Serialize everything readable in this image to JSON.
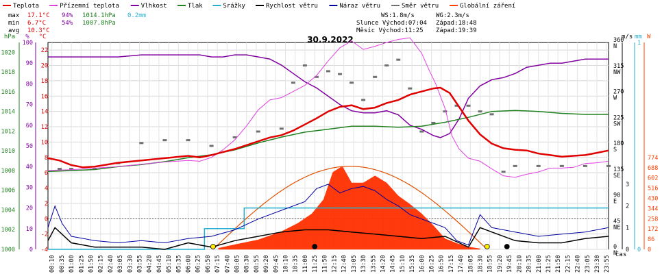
{
  "legend": [
    {
      "label": "Teplota",
      "color": "#e00000"
    },
    {
      "label": "Přízemní teplota",
      "color": "#e040e0"
    },
    {
      "label": "Vlhkost",
      "color": "#8000a0"
    },
    {
      "label": "Tlak",
      "color": "#208020"
    },
    {
      "label": "Srážky",
      "color": "#20b0d0"
    },
    {
      "label": "Rychlost větru",
      "color": "#000000"
    },
    {
      "label": "Náraz větru",
      "color": "#0000a0"
    },
    {
      "label": "Směr větru",
      "color": "#707070"
    },
    {
      "label": "Globální záření",
      "color": "#ff4000"
    }
  ],
  "stats": {
    "max_label": "max",
    "max_temp": "17.1°C",
    "max_hum": "94%",
    "max_press": "1014.1hPa",
    "max_rain": "0.2mm",
    "min_label": "min",
    "min_temp": "6.7°C",
    "min_hum": "54%",
    "min_press": "1007.8hPa",
    "avg_label": "avg",
    "avg_temp": "10.3°C",
    "ws": "WS:1.8m/s",
    "wg": "WG:2.3m/s",
    "sun": "Slunce Východ:07:04",
    "sun_set": "Západ:18:48",
    "moon": "Měsíc Východ:11:25",
    "moon_set": "Západ:19:39"
  },
  "chart_data": {
    "type": "line",
    "title": "30.9.2022",
    "xlabel": "čas",
    "x_ticks": [
      "00:10",
      "00:35",
      "01:00",
      "01:25",
      "01:50",
      "02:15",
      "02:40",
      "03:05",
      "03:30",
      "03:55",
      "04:20",
      "04:45",
      "05:10",
      "05:35",
      "06:00",
      "06:25",
      "06:50",
      "07:15",
      "07:40",
      "08:05",
      "08:30",
      "08:55",
      "09:20",
      "09:45",
      "10:10",
      "10:35",
      "11:00",
      "11:25",
      "11:50",
      "12:15",
      "12:40",
      "13:05",
      "13:30",
      "13:55",
      "14:20",
      "14:45",
      "15:10",
      "15:35",
      "16:00",
      "16:25",
      "16:50",
      "17:15",
      "17:40",
      "18:05",
      "18:30",
      "18:55",
      "19:20",
      "19:45",
      "20:10",
      "20:35",
      "21:00",
      "21:25",
      "21:50",
      "22:15",
      "22:40",
      "23:05",
      "23:30",
      "23:55"
    ],
    "left_axes": [
      {
        "unit": "hPa",
        "color": "#208020",
        "ticks": [
          "1000",
          "1002",
          "1004",
          "1006",
          "1008",
          "1010",
          "1012",
          "1014",
          "1016",
          "1018",
          "1020"
        ]
      },
      {
        "unit": "%",
        "color": "#8000a0",
        "ticks": [
          "0",
          "10",
          "20",
          "30",
          "40",
          "50",
          "60",
          "70",
          "80",
          "90",
          "100"
        ]
      },
      {
        "unit": "°C",
        "color": "#e00000",
        "ticks": [
          "-4",
          "-2",
          "0",
          "2",
          "4",
          "6",
          "8",
          "10",
          "12",
          "14",
          "16",
          "18",
          "20",
          "22"
        ]
      }
    ],
    "right_axes": [
      {
        "unit": "m/s",
        "color": "#000000",
        "ticks": [
          "0",
          "1",
          "2",
          "3"
        ]
      },
      {
        "unit": "mm",
        "color": "#20b0d0",
        "ticks": [
          "0",
          "1"
        ]
      },
      {
        "unit": "W",
        "color": "#ff4000",
        "ticks": [
          "0",
          "86",
          "172",
          "258",
          "344",
          "430",
          "516",
          "602",
          "688",
          "774"
        ]
      },
      {
        "unit": "°",
        "color": "#000000",
        "ticks": [
          "0",
          "45",
          "90",
          "135",
          "180",
          "225",
          "270",
          "315",
          "360"
        ],
        "dir": [
          "N",
          "NE",
          "E",
          "SE",
          "S",
          "SW",
          "W",
          "NW",
          "N"
        ]
      }
    ],
    "ylim_temp": [
      -4,
      23
    ],
    "ylim_hum": [
      0,
      100
    ],
    "ylim_press": [
      1000,
      1021
    ],
    "series": [
      {
        "name": "Teplota",
        "unit": "°C",
        "x_hours": [
          0,
          0.5,
          1,
          1.5,
          2,
          3,
          4,
          5,
          6,
          6.5,
          7,
          7.5,
          8,
          8.5,
          9,
          9.5,
          10,
          10.5,
          11,
          11.5,
          12,
          12.5,
          13,
          13.5,
          14,
          14.5,
          15,
          15.5,
          16,
          16.5,
          16.8,
          17.2,
          17.6,
          18,
          18.5,
          19,
          19.5,
          20,
          20.5,
          21,
          21.5,
          22,
          22.5,
          23,
          23.5,
          24
        ],
        "values": [
          7.9,
          7.6,
          7.0,
          6.7,
          6.8,
          7.3,
          7.6,
          7.9,
          8.2,
          8.0,
          8.3,
          8.7,
          9.1,
          9.6,
          10.1,
          10.6,
          10.9,
          11.5,
          12.3,
          13.1,
          14.0,
          14.6,
          14.8,
          14.3,
          14.5,
          15.1,
          15.5,
          16.2,
          16.6,
          17.0,
          17.1,
          16.4,
          14.6,
          12.8,
          11.0,
          9.8,
          9.2,
          9.0,
          8.9,
          8.5,
          8.3,
          8.1,
          8.2,
          8.3,
          8.6,
          8.9
        ]
      },
      {
        "name": "Přízemní teplota",
        "unit": "°C",
        "x_hours": [
          0,
          1,
          2,
          3,
          4,
          5,
          6,
          6.5,
          7,
          7.5,
          8,
          8.5,
          9,
          9.5,
          10,
          10.5,
          11,
          11.5,
          12,
          12.5,
          13,
          13.5,
          14,
          14.5,
          15,
          15.5,
          16,
          16.3,
          16.6,
          17,
          17.3,
          17.6,
          18,
          18.5,
          19,
          19.5,
          20,
          20.5,
          21,
          21.5,
          22,
          22.5,
          23,
          23.5,
          24
        ],
        "values": [
          6.3,
          6.4,
          6.6,
          6.8,
          7.1,
          7.4,
          7.6,
          7.5,
          8.0,
          9.0,
          10.3,
          12.1,
          14.2,
          15.5,
          15.8,
          16.6,
          17.4,
          18.7,
          20.6,
          22.3,
          23.2,
          22.1,
          22.5,
          23.0,
          23.4,
          23.6,
          21.6,
          19.5,
          17.6,
          14.4,
          10.8,
          9.1,
          7.9,
          7.5,
          6.5,
          5.6,
          5.4,
          5.8,
          6.1,
          6.6,
          6.6,
          6.7,
          7.2,
          7.3,
          7.5
        ]
      },
      {
        "name": "Vlhkost",
        "unit": "%",
        "x_hours": [
          0,
          1,
          2,
          3,
          4,
          5,
          6,
          6.5,
          7,
          7.5,
          8,
          8.5,
          9,
          9.5,
          10,
          10.5,
          11,
          11.5,
          12,
          12.5,
          13,
          13.5,
          14,
          14.5,
          15,
          15.5,
          16,
          16.5,
          16.8,
          17.2,
          17.6,
          18,
          18.5,
          19,
          19.5,
          20,
          20.5,
          21,
          21.5,
          22,
          22.5,
          23,
          23.5,
          24
        ],
        "values": [
          93,
          93,
          93,
          93,
          94,
          94,
          94,
          94,
          93,
          93,
          94,
          94,
          93,
          92,
          89,
          85,
          81,
          78,
          74,
          70,
          67,
          66,
          66,
          67,
          65,
          60,
          58,
          55,
          54,
          56,
          63,
          73,
          79,
          82,
          83,
          85,
          88,
          89,
          90,
          90,
          91,
          92,
          92,
          92
        ]
      },
      {
        "name": "Tlak",
        "unit": "hPa",
        "x_hours": [
          0,
          1,
          2,
          3,
          4,
          5,
          6,
          7,
          8,
          9,
          10,
          11,
          12,
          13,
          14,
          15,
          16,
          17,
          18,
          19,
          20,
          21,
          22,
          23,
          24
        ],
        "values": [
          1007.9,
          1008.0,
          1008.1,
          1008.4,
          1008.6,
          1008.9,
          1009.3,
          1009.6,
          1010.1,
          1010.8,
          1011.4,
          1011.9,
          1012.2,
          1012.5,
          1012.5,
          1012.4,
          1012.5,
          1012.9,
          1013.4,
          1014.0,
          1014.1,
          1014.0,
          1013.8,
          1013.7,
          1013.7
        ]
      },
      {
        "name": "Srážky",
        "unit": "mm",
        "x_hours": [
          0,
          6.4,
          6.7,
          8.0,
          8.4,
          24
        ],
        "values": [
          0.0,
          0.0,
          0.1,
          0.1,
          0.2,
          0.2
        ]
      },
      {
        "name": "Globální záření",
        "unit": "W",
        "x_hours": [
          7.3,
          8,
          9,
          10,
          10.7,
          11.3,
          11.8,
          12.2,
          12.6,
          13,
          13.5,
          14,
          14.5,
          15,
          15.5,
          16,
          16.5,
          17,
          17.5,
          18,
          18.5
        ],
        "values": [
          10,
          40,
          80,
          150,
          220,
          300,
          420,
          650,
          700,
          560,
          560,
          620,
          560,
          450,
          380,
          300,
          200,
          90,
          50,
          20,
          5
        ]
      },
      {
        "name": "Náraz větru",
        "unit": "m/s",
        "x_hours": [
          0,
          0.3,
          0.6,
          1,
          2,
          3,
          4,
          5,
          6,
          7,
          8,
          9,
          10,
          11,
          11.5,
          12,
          12.5,
          13,
          13.5,
          14,
          14.5,
          15,
          15.5,
          16,
          16.5,
          17,
          17.5,
          18,
          18.5,
          19,
          20,
          21,
          22,
          23,
          24
        ],
        "values": [
          1.0,
          2.0,
          1.2,
          0.6,
          0.4,
          0.3,
          0.4,
          0.3,
          0.5,
          0.6,
          0.9,
          1.4,
          1.8,
          2.2,
          2.8,
          3.0,
          2.6,
          2.8,
          2.9,
          2.7,
          2.3,
          2.0,
          1.6,
          1.4,
          1.2,
          1.0,
          0.4,
          0.2,
          1.6,
          1.0,
          0.8,
          0.6,
          0.7,
          0.8,
          1.0
        ]
      },
      {
        "name": "Rychlost větru",
        "unit": "m/s",
        "x_hours": [
          0,
          0.3,
          1,
          2,
          3,
          4,
          5,
          6,
          7,
          8,
          9,
          10,
          11,
          12,
          13,
          14,
          15,
          16,
          17,
          18,
          18.5,
          19,
          20,
          21,
          22,
          23,
          24
        ],
        "values": [
          0.4,
          1.0,
          0.3,
          0.1,
          0.1,
          0.1,
          0.0,
          0.3,
          0.1,
          0.4,
          0.6,
          0.8,
          0.9,
          0.9,
          0.8,
          0.7,
          0.6,
          0.5,
          0.6,
          0.1,
          1.0,
          0.8,
          0.4,
          0.3,
          0.3,
          0.5,
          0.6
        ]
      },
      {
        "name": "Směr větru",
        "unit": "°",
        "x_hours": [
          0.5,
          1,
          2,
          3,
          4,
          5,
          6,
          7,
          8,
          9,
          10,
          10.5,
          11,
          11.5,
          12,
          12.5,
          13,
          13.5,
          14,
          14.5,
          15,
          15.5,
          16,
          16.5,
          17,
          17.5,
          18,
          18.5,
          19,
          19.5,
          20,
          21,
          22,
          23,
          24
        ],
        "values": [
          140,
          140,
          140,
          150,
          185,
          190,
          190,
          180,
          195,
          205,
          210,
          290,
          320,
          300,
          310,
          305,
          290,
          260,
          300,
          320,
          330,
          280,
          205,
          220,
          240,
          250,
          250,
          240,
          235,
          135,
          145,
          145,
          145,
          145,
          145
        ]
      }
    ],
    "markers": [
      {
        "label": "sunrise",
        "x_hours": 7.07,
        "color": "#ffee00"
      },
      {
        "label": "moonrise",
        "x_hours": 11.42,
        "color": "#000000"
      },
      {
        "label": "sunset",
        "x_hours": 18.8,
        "color": "#ffee00"
      },
      {
        "label": "moonset",
        "x_hours": 19.65,
        "color": "#000000"
      }
    ],
    "grid": true
  }
}
